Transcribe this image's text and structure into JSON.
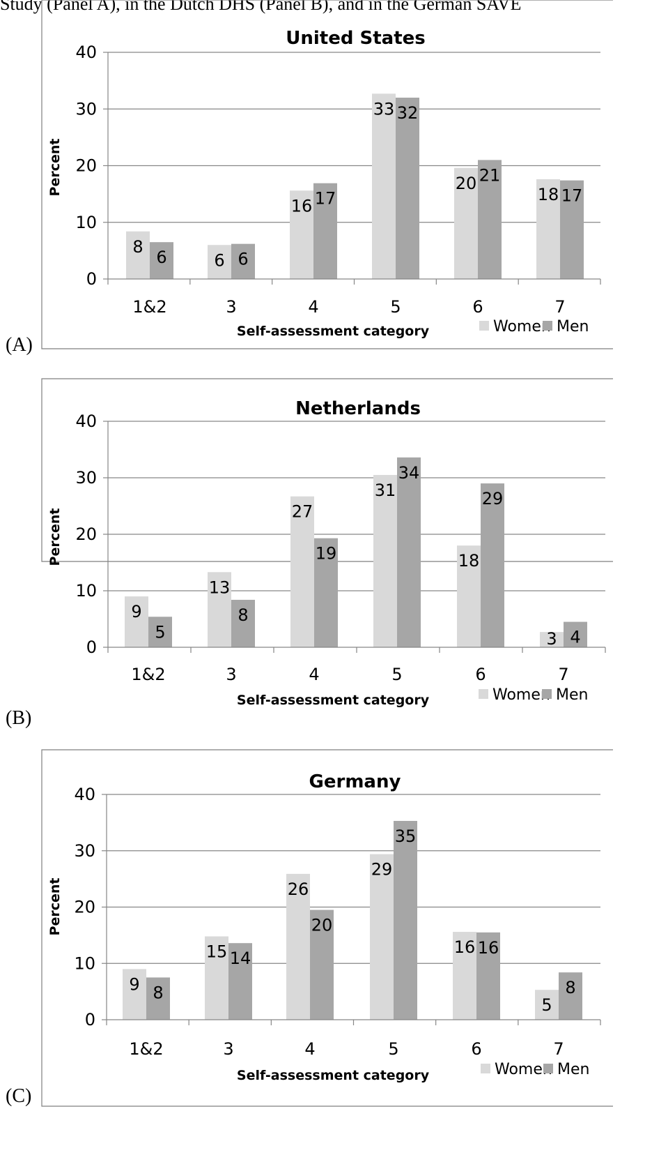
{
  "caption": "Study (Panel A), in the Dutch DHS (Panel B), and in the German SAVE",
  "colors": {
    "women": "#d9d9d9",
    "men": "#a6a6a6",
    "grid": "#868686",
    "frame": "#7f7f7f"
  },
  "chart_data": [
    {
      "type": "bar",
      "panel_label": "(A)",
      "title": "United States",
      "xlabel": "Self-assessment category",
      "ylabel": "Percent",
      "ylim": [
        0,
        40
      ],
      "yticks": [
        0,
        10,
        20,
        30,
        40
      ],
      "categories": [
        "1&2",
        "3",
        "4",
        "5",
        "6",
        "7"
      ],
      "series": [
        {
          "name": "Women",
          "values": [
            8.4,
            6.0,
            15.6,
            32.7,
            19.6,
            17.6
          ],
          "labels": [
            "8",
            "6",
            "16",
            "33",
            "20",
            "18"
          ]
        },
        {
          "name": "Men",
          "values": [
            6.5,
            6.2,
            16.9,
            32.0,
            21.0,
            17.4
          ],
          "labels": [
            "6",
            "6",
            "17",
            "32",
            "21",
            "17"
          ]
        }
      ],
      "grid": true,
      "legend": "bottom-right"
    },
    {
      "type": "bar",
      "panel_label": "(B)",
      "title": "Netherlands",
      "xlabel": "Self-assessment category",
      "ylabel": "Percent",
      "ylim": [
        0,
        40
      ],
      "yticks": [
        0,
        10,
        20,
        30,
        40
      ],
      "categories": [
        "1&2",
        "3",
        "4",
        "5",
        "6",
        "7"
      ],
      "series": [
        {
          "name": "Women",
          "values": [
            9.0,
            13.3,
            26.7,
            30.5,
            18.0,
            2.7
          ],
          "labels": [
            "9",
            "13",
            "27",
            "31",
            "18",
            "3"
          ]
        },
        {
          "name": "Men",
          "values": [
            5.4,
            8.4,
            19.3,
            33.6,
            29.0,
            4.5
          ],
          "labels": [
            "5",
            "8",
            "19",
            "34",
            "29",
            "4"
          ]
        }
      ],
      "grid": true,
      "legend": "bottom-right"
    },
    {
      "type": "bar",
      "panel_label": "(C)",
      "title": "Germany",
      "xlabel": "Self-assessment category",
      "ylabel": "Percent",
      "ylim": [
        0,
        40
      ],
      "yticks": [
        0,
        10,
        20,
        30,
        40
      ],
      "categories": [
        "1&2",
        "3",
        "4",
        "5",
        "6",
        "7"
      ],
      "series": [
        {
          "name": "Women",
          "values": [
            9.0,
            14.8,
            25.9,
            29.4,
            15.6,
            5.3
          ],
          "labels": [
            "9",
            "15",
            "26",
            "29",
            "16",
            "5"
          ]
        },
        {
          "name": "Men",
          "values": [
            7.5,
            13.6,
            19.5,
            35.3,
            15.5,
            8.4
          ],
          "labels": [
            "8",
            "14",
            "20",
            "35",
            "16",
            "8"
          ]
        }
      ],
      "grid": true,
      "legend": "bottom-right"
    }
  ]
}
